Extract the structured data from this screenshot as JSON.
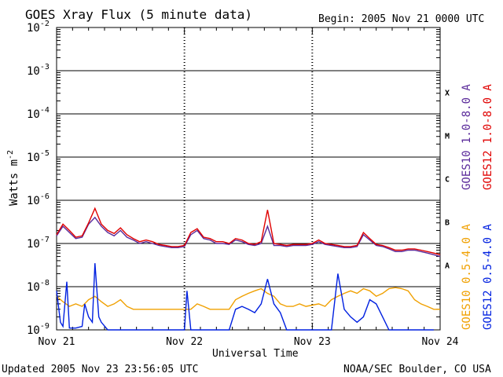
{
  "chart_data": {
    "type": "line",
    "title": "GOES Xray Flux (5 minute data)",
    "begin_label": "Begin:  2005 Nov 21 0000 UTC",
    "ylabel": "Watts m",
    "ylabel_sup": "-2",
    "xlabel": "Universal Time",
    "yscale": "log",
    "ylim": [
      1e-09,
      0.01
    ],
    "xlim_days": [
      0,
      3
    ],
    "grid": true,
    "x_tick_labels": [
      {
        "x": 0,
        "label": "Nov 21"
      },
      {
        "x": 1,
        "label": "Nov 22"
      },
      {
        "x": 2,
        "label": "Nov 23"
      },
      {
        "x": 3,
        "label": "Nov 24"
      }
    ],
    "y_tick_labels": [
      {
        "exp": -2,
        "base": "10",
        "sup": "-2"
      },
      {
        "exp": -3,
        "base": "10",
        "sup": "-3"
      },
      {
        "exp": -4,
        "base": "10",
        "sup": "-4"
      },
      {
        "exp": -5,
        "base": "10",
        "sup": "-5"
      },
      {
        "exp": -6,
        "base": "10",
        "sup": "-6"
      },
      {
        "exp": -7,
        "base": "10",
        "sup": "-7"
      },
      {
        "exp": -8,
        "base": "10",
        "sup": "-8"
      },
      {
        "exp": -9,
        "base": "10",
        "sup": "-9"
      }
    ],
    "flare_classes": [
      {
        "label": "X",
        "exp": -3.5
      },
      {
        "label": "M",
        "exp": -4.5
      },
      {
        "label": "C",
        "exp": -5.5
      },
      {
        "label": "B",
        "exp": -6.5
      },
      {
        "label": "A",
        "exp": -7.5
      }
    ],
    "series": [
      {
        "name": "GOES10 1.0-8.0 A",
        "color": "#5a2a9a",
        "x": [
          0,
          0.05,
          0.1,
          0.15,
          0.2,
          0.25,
          0.3,
          0.35,
          0.4,
          0.45,
          0.5,
          0.55,
          0.6,
          0.65,
          0.7,
          0.75,
          0.8,
          0.85,
          0.9,
          0.95,
          1.0,
          1.05,
          1.1,
          1.15,
          1.2,
          1.25,
          1.3,
          1.35,
          1.4,
          1.45,
          1.5,
          1.55,
          1.6,
          1.65,
          1.7,
          1.75,
          1.8,
          1.85,
          1.9,
          1.95,
          2.0,
          2.05,
          2.1,
          2.15,
          2.2,
          2.25,
          2.3,
          2.35,
          2.4,
          2.45,
          2.5,
          2.55,
          2.6,
          2.65,
          2.7,
          2.75,
          2.8,
          2.85,
          2.9,
          2.95,
          3.0
        ],
        "y": [
          1.5e-07,
          2.5e-07,
          1.8e-07,
          1.3e-07,
          1.4e-07,
          2.8e-07,
          4e-07,
          2.5e-07,
          1.8e-07,
          1.5e-07,
          2e-07,
          1.4e-07,
          1.2e-07,
          1e-07,
          1.1e-07,
          1e-07,
          9e-08,
          8.5e-08,
          8e-08,
          8e-08,
          8.5e-08,
          1.6e-07,
          2e-07,
          1.3e-07,
          1.2e-07,
          1e-07,
          1e-07,
          9.5e-08,
          1.2e-07,
          1.1e-07,
          9.5e-08,
          9e-08,
          1e-07,
          2.5e-07,
          9e-08,
          9e-08,
          8.5e-08,
          9e-08,
          9e-08,
          9e-08,
          9.5e-08,
          1.1e-07,
          9.5e-08,
          9e-08,
          8.5e-08,
          8e-08,
          8e-08,
          8.5e-08,
          1.6e-07,
          1.2e-07,
          9e-08,
          8.5e-08,
          7.5e-08,
          6.5e-08,
          6.5e-08,
          7e-08,
          7e-08,
          6.5e-08,
          6e-08,
          5.5e-08,
          5e-08
        ]
      },
      {
        "name": "GOES12 1.0-8.0 A",
        "color": "#e00000",
        "x": [
          0,
          0.05,
          0.1,
          0.15,
          0.2,
          0.25,
          0.3,
          0.35,
          0.4,
          0.45,
          0.5,
          0.55,
          0.6,
          0.65,
          0.7,
          0.75,
          0.8,
          0.85,
          0.9,
          0.95,
          1.0,
          1.05,
          1.1,
          1.15,
          1.2,
          1.25,
          1.3,
          1.35,
          1.4,
          1.45,
          1.5,
          1.55,
          1.6,
          1.65,
          1.7,
          1.75,
          1.8,
          1.85,
          1.9,
          1.95,
          2.0,
          2.05,
          2.1,
          2.15,
          2.2,
          2.25,
          2.3,
          2.35,
          2.4,
          2.45,
          2.5,
          2.55,
          2.6,
          2.65,
          2.7,
          2.75,
          2.8,
          2.85,
          2.9,
          2.95,
          3.0
        ],
        "y": [
          1.6e-07,
          2.8e-07,
          2e-07,
          1.4e-07,
          1.5e-07,
          3e-07,
          6.5e-07,
          2.8e-07,
          2e-07,
          1.7e-07,
          2.3e-07,
          1.6e-07,
          1.3e-07,
          1.1e-07,
          1.2e-07,
          1.1e-07,
          9.5e-08,
          9e-08,
          8.5e-08,
          8.5e-08,
          9e-08,
          1.8e-07,
          2.2e-07,
          1.4e-07,
          1.3e-07,
          1.1e-07,
          1.1e-07,
          1e-07,
          1.3e-07,
          1.2e-07,
          1e-07,
          9.5e-08,
          1.1e-07,
          6e-07,
          1e-07,
          9.5e-08,
          9e-08,
          9.5e-08,
          9.5e-08,
          9.5e-08,
          1e-07,
          1.2e-07,
          1e-07,
          9.5e-08,
          9e-08,
          8.5e-08,
          8.5e-08,
          9e-08,
          1.8e-07,
          1.3e-07,
          9.5e-08,
          9e-08,
          8e-08,
          7e-08,
          7e-08,
          7.5e-08,
          7.5e-08,
          7e-08,
          6.5e-08,
          6e-08,
          5.5e-08
        ]
      },
      {
        "name": "GOES10 0.5-4.0 A",
        "color": "#f0a000",
        "x": [
          0,
          0.05,
          0.1,
          0.15,
          0.2,
          0.25,
          0.3,
          0.35,
          0.4,
          0.45,
          0.5,
          0.55,
          0.6,
          0.65,
          0.7,
          0.75,
          0.8,
          0.85,
          0.9,
          0.95,
          1.05,
          1.1,
          1.15,
          1.2,
          1.25,
          1.3,
          1.35,
          1.4,
          1.45,
          1.5,
          1.55,
          1.6,
          1.65,
          1.7,
          1.75,
          1.8,
          1.85,
          1.9,
          1.95,
          2.05,
          2.1,
          2.15,
          2.2,
          2.25,
          2.3,
          2.35,
          2.4,
          2.45,
          2.5,
          2.55,
          2.6,
          2.65,
          2.7,
          2.75,
          2.8,
          2.85,
          2.9,
          2.95,
          3.0
        ],
        "y": [
          6e-09,
          4.5e-09,
          3.5e-09,
          4e-09,
          3.5e-09,
          5e-09,
          6e-09,
          4.5e-09,
          3.5e-09,
          4e-09,
          5e-09,
          3.5e-09,
          3e-09,
          3e-09,
          3e-09,
          3e-09,
          3e-09,
          3e-09,
          3e-09,
          3e-09,
          3e-09,
          4e-09,
          3.5e-09,
          3e-09,
          3e-09,
          3e-09,
          3e-09,
          5e-09,
          6e-09,
          7e-09,
          8e-09,
          9e-09,
          7e-09,
          6e-09,
          4e-09,
          3.5e-09,
          3.5e-09,
          4e-09,
          3.5e-09,
          4e-09,
          3.5e-09,
          5e-09,
          6e-09,
          7e-09,
          8e-09,
          7e-09,
          9e-09,
          8e-09,
          6e-09,
          7e-09,
          9e-09,
          9.5e-09,
          9e-09,
          8e-09,
          5e-09,
          4e-09,
          3.5e-09,
          3e-09,
          3e-09
        ]
      },
      {
        "name": "GOES12 0.5-4.0 A",
        "color": "#0020e0",
        "x": [
          0,
          0.03,
          0.05,
          0.08,
          0.1,
          0.15,
          0.2,
          0.22,
          0.25,
          0.28,
          0.3,
          0.33,
          0.35,
          0.4,
          0.45,
          0.5,
          0.55,
          0.6,
          0.65,
          0.7,
          0.75,
          0.8,
          0.85,
          0.9,
          0.95,
          1.0,
          1.02,
          1.05,
          1.1,
          1.15,
          1.2,
          1.25,
          1.3,
          1.35,
          1.4,
          1.45,
          1.5,
          1.55,
          1.6,
          1.65,
          1.7,
          1.75,
          1.8,
          1.85,
          1.9,
          1.95,
          2.0,
          2.05,
          2.1,
          2.15,
          2.2,
          2.25,
          2.3,
          2.35,
          2.4,
          2.45,
          2.5,
          2.55,
          2.6,
          2.65,
          2.7,
          2.75,
          2.8,
          2.85,
          2.9,
          2.95
        ],
        "y": [
          8e-09,
          1.5e-09,
          1.2e-09,
          1.3e-08,
          1.1e-09,
          1.1e-09,
          1.2e-09,
          4e-09,
          2e-09,
          1.5e-09,
          3.5e-08,
          2e-09,
          1.5e-09,
          1e-09,
          1e-09,
          1e-09,
          1e-09,
          1e-09,
          1e-09,
          1e-09,
          1e-09,
          1e-09,
          1e-09,
          1e-09,
          1e-09,
          1e-09,
          8e-09,
          1e-09,
          1e-09,
          1e-09,
          1e-09,
          1e-09,
          1e-09,
          1e-09,
          3e-09,
          3.5e-09,
          3e-09,
          2.5e-09,
          4e-09,
          1.5e-08,
          4e-09,
          2.5e-09,
          1e-09,
          1e-09,
          1e-09,
          1e-09,
          1e-09,
          1e-09,
          1e-09,
          1e-09,
          2e-08,
          3e-09,
          2e-09,
          1.5e-09,
          2e-09,
          5e-09,
          4e-09,
          2e-09,
          1e-09,
          1e-09,
          1e-09,
          1e-09,
          1e-09,
          1e-09,
          1e-09,
          1e-09
        ]
      }
    ]
  },
  "footer": {
    "updated": "Updated 2005 Nov 23 23:56:05 UTC",
    "credit": "NOAA/SEC Boulder, CO USA"
  }
}
